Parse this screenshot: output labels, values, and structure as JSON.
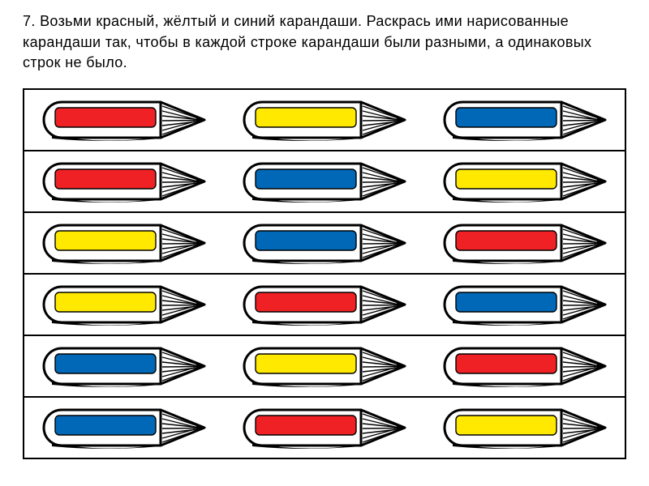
{
  "instruction": "7. Возьми красный, жёлтый и синий карандаши. Раскрась ими нарисованные карандаши так, чтобы в каждой строке карандаши были разными, а одинаковых строк не было.",
  "palette": {
    "red": "#ef2124",
    "yellow": "#ffe900",
    "blue": "#0068b7",
    "outline": "#000000",
    "body_fill": "#ffffff",
    "tip_line": "#000000",
    "page_bg": "#ffffff"
  },
  "line_weight_outer": 3,
  "line_weight_inner": 1.4,
  "rows": [
    [
      "red",
      "yellow",
      "blue"
    ],
    [
      "red",
      "blue",
      "yellow"
    ],
    [
      "yellow",
      "blue",
      "red"
    ],
    [
      "yellow",
      "red",
      "blue"
    ],
    [
      "blue",
      "yellow",
      "red"
    ],
    [
      "blue",
      "red",
      "yellow"
    ]
  ],
  "grid": {
    "rows": 6,
    "cols": 3
  }
}
